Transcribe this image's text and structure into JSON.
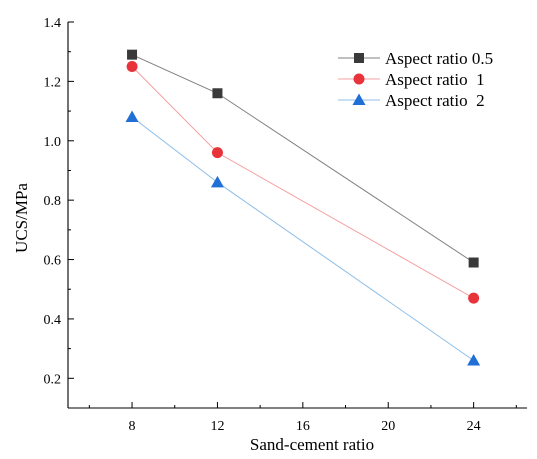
{
  "chart_data": {
    "type": "line",
    "title": "",
    "xlabel": "Sand-cement ratio",
    "ylabel": "UCS/MPa",
    "xlim": [
      5,
      26.5
    ],
    "ylim": [
      0.1,
      1.4
    ],
    "xticks": [
      8,
      12,
      16,
      20,
      24
    ],
    "yticks": [
      0.2,
      0.4,
      0.6,
      0.8,
      1.0,
      1.2,
      1.4
    ],
    "ytick_labels": [
      "0.2",
      "0.4",
      "0.6",
      "0.8",
      "1.0",
      "1.2",
      "1.4"
    ],
    "x": [
      8,
      12,
      24
    ],
    "grid": false,
    "legend_position": "top-right",
    "series": [
      {
        "name": "Aspect ratio 0.5",
        "values": [
          1.29,
          1.16,
          0.59
        ],
        "color": "#808080",
        "marker_color": "#3a3a3a",
        "marker": "square"
      },
      {
        "name": "Aspect ratio  1",
        "values": [
          1.25,
          0.96,
          0.47
        ],
        "color": "#f5a0a0",
        "marker_color": "#e8333a",
        "marker": "circle"
      },
      {
        "name": "Aspect ratio  2",
        "values": [
          1.08,
          0.86,
          0.26
        ],
        "color": "#8fbde8",
        "marker_color": "#1f6fd6",
        "marker": "triangle"
      }
    ]
  }
}
